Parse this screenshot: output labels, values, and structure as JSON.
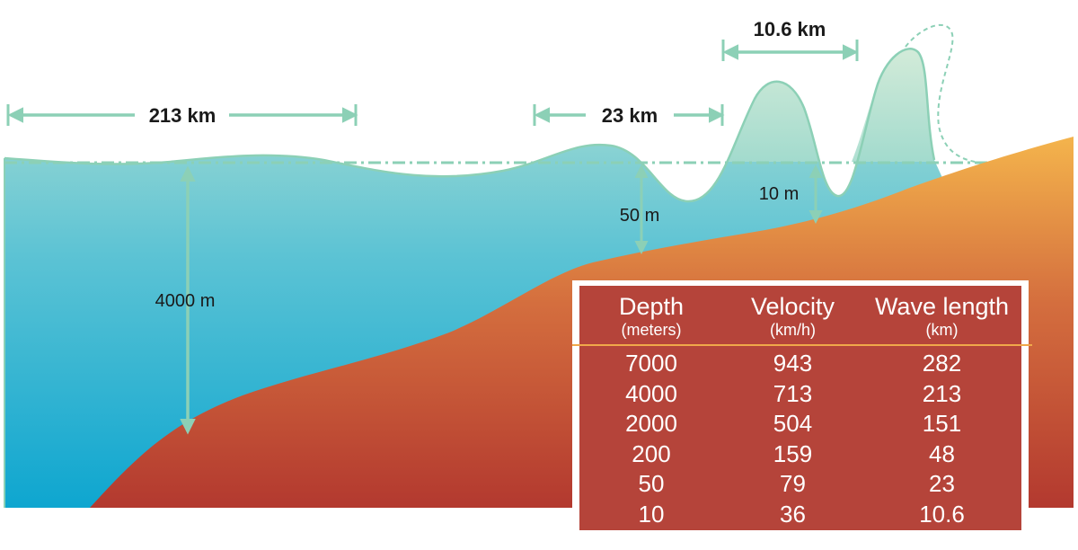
{
  "annotations": {
    "wavelength_213": "213 km",
    "wavelength_23": "23 km",
    "wavelength_10_6": "10.6 km",
    "depth_4000": "4000 m",
    "height_50": "50 m",
    "height_10": "10 m"
  },
  "table": {
    "columns": [
      {
        "header": "Depth",
        "unit": "(meters)"
      },
      {
        "header": "Velocity",
        "unit": "(km/h)"
      },
      {
        "header": "Wave length",
        "unit": "(km)"
      }
    ],
    "rows": [
      [
        "7000",
        "943",
        "282"
      ],
      [
        "4000",
        "713",
        "213"
      ],
      [
        "2000",
        "504",
        "151"
      ],
      [
        "200",
        "159",
        "48"
      ],
      [
        "50",
        "79",
        "23"
      ],
      [
        "10",
        "36",
        "10.6"
      ]
    ]
  },
  "colors": {
    "water_top": "#a6dccd",
    "water_bottom": "#14a8cf",
    "seafloor_top": "#f2b24a",
    "seafloor_bottom": "#b33b2f",
    "arrow": "#8cd0b6",
    "table_bg": "#b5443a",
    "table_rule": "#f0a84a"
  }
}
